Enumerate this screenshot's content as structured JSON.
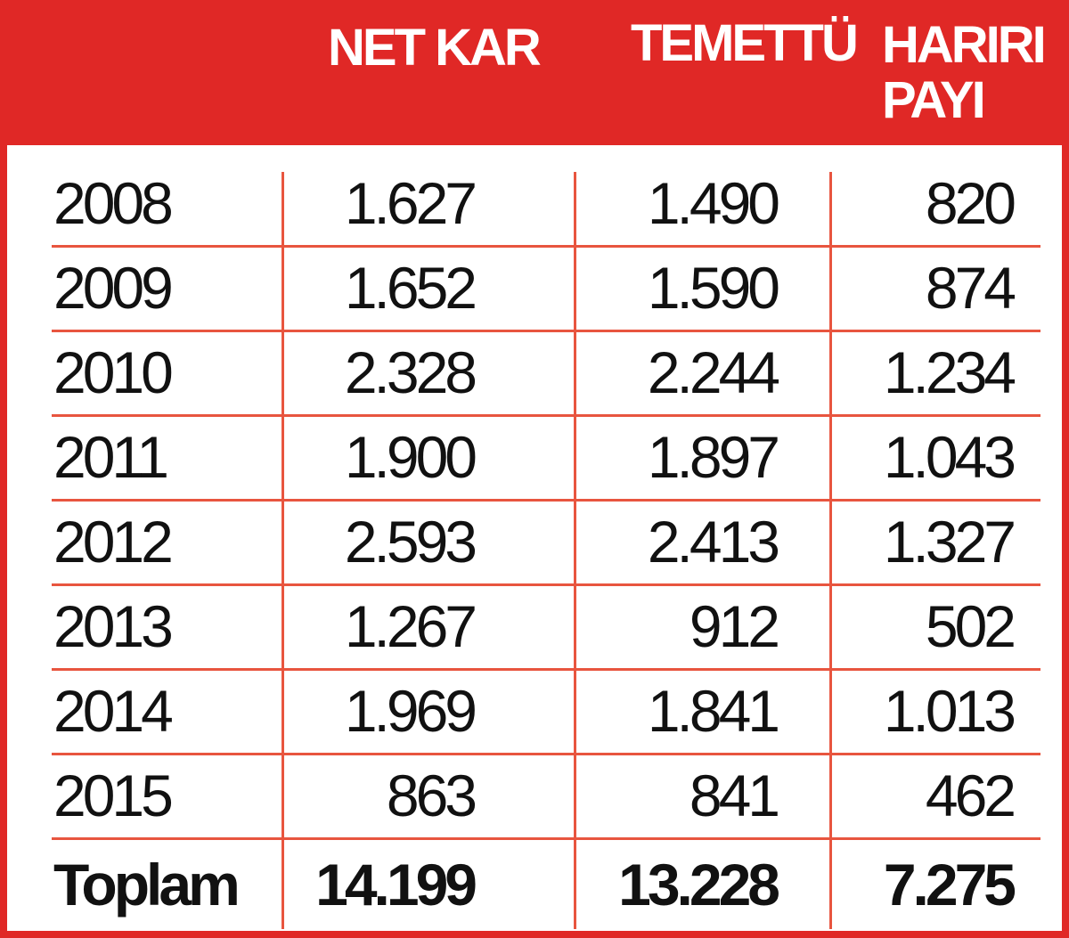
{
  "table": {
    "headers": [
      "NET KAR",
      "TEMETTÜ",
      "HARIRI PAYI"
    ],
    "rows": [
      [
        "2008",
        "1.627",
        "1.490",
        "820"
      ],
      [
        "2009",
        "1.652",
        "1.590",
        "874"
      ],
      [
        "2010",
        "2.328",
        "2.244",
        "1.234"
      ],
      [
        "2011",
        "1.900",
        "1.897",
        "1.043"
      ],
      [
        "2012",
        "2.593",
        "2.413",
        "1.327"
      ],
      [
        "2013",
        "1.267",
        "912",
        "502"
      ],
      [
        "2014",
        "1.969",
        "1.841",
        "1.013"
      ],
      [
        "2015",
        "863",
        "841",
        "462"
      ]
    ],
    "total": [
      "Toplam",
      "14.199",
      "13.228",
      "7.275"
    ]
  }
}
